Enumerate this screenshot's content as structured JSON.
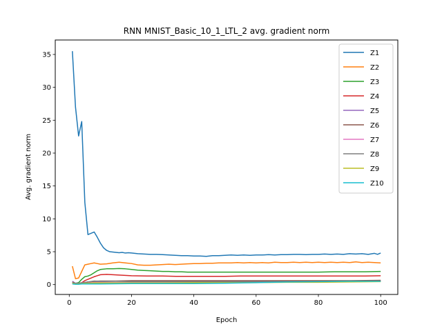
{
  "chart_data": {
    "type": "line",
    "title": "RNN MNIST_Basic_10_1_LTL_2 avg. gradient norm",
    "xlabel": "Epoch",
    "ylabel": "Avg. gradient norm",
    "xlim": [
      -4.5,
      105.5
    ],
    "ylim": [
      -1.5,
      37.2
    ],
    "xticks": [
      0,
      20,
      40,
      60,
      80,
      100
    ],
    "yticks": [
      0,
      5,
      10,
      15,
      20,
      25,
      30,
      35
    ],
    "legend_position": "top-right",
    "grid": false,
    "series": [
      {
        "name": "Z1",
        "color": "#1f77b4",
        "points": [
          [
            1,
            35.5
          ],
          [
            2,
            27
          ],
          [
            3,
            22.6
          ],
          [
            4,
            24.8
          ],
          [
            5,
            12.5
          ],
          [
            6,
            7.6
          ],
          [
            7,
            7.8
          ],
          [
            8,
            8.0
          ],
          [
            9,
            7.2
          ],
          [
            10,
            6.3
          ],
          [
            11,
            5.6
          ],
          [
            12,
            5.2
          ],
          [
            13,
            5.0
          ],
          [
            14,
            4.95
          ],
          [
            15,
            4.9
          ],
          [
            16,
            4.85
          ],
          [
            17,
            4.9
          ],
          [
            18,
            4.8
          ],
          [
            19,
            4.85
          ],
          [
            20,
            4.8
          ],
          [
            22,
            4.7
          ],
          [
            24,
            4.65
          ],
          [
            26,
            4.6
          ],
          [
            28,
            4.6
          ],
          [
            30,
            4.55
          ],
          [
            32,
            4.5
          ],
          [
            34,
            4.45
          ],
          [
            36,
            4.4
          ],
          [
            38,
            4.4
          ],
          [
            40,
            4.35
          ],
          [
            42,
            4.35
          ],
          [
            44,
            4.3
          ],
          [
            46,
            4.4
          ],
          [
            48,
            4.4
          ],
          [
            50,
            4.45
          ],
          [
            52,
            4.5
          ],
          [
            54,
            4.45
          ],
          [
            56,
            4.5
          ],
          [
            58,
            4.45
          ],
          [
            60,
            4.5
          ],
          [
            62,
            4.5
          ],
          [
            64,
            4.55
          ],
          [
            66,
            4.5
          ],
          [
            68,
            4.55
          ],
          [
            70,
            4.55
          ],
          [
            72,
            4.6
          ],
          [
            74,
            4.6
          ],
          [
            76,
            4.55
          ],
          [
            78,
            4.6
          ],
          [
            80,
            4.6
          ],
          [
            82,
            4.65
          ],
          [
            84,
            4.6
          ],
          [
            86,
            4.65
          ],
          [
            88,
            4.6
          ],
          [
            90,
            4.7
          ],
          [
            92,
            4.65
          ],
          [
            94,
            4.7
          ],
          [
            96,
            4.6
          ],
          [
            98,
            4.75
          ],
          [
            99,
            4.6
          ],
          [
            100,
            4.8
          ]
        ]
      },
      {
        "name": "Z2",
        "color": "#ff7f0e",
        "points": [
          [
            1,
            2.8
          ],
          [
            2,
            0.9
          ],
          [
            3,
            1.0
          ],
          [
            4,
            2.0
          ],
          [
            5,
            3.0
          ],
          [
            6,
            3.1
          ],
          [
            7,
            3.2
          ],
          [
            8,
            3.3
          ],
          [
            9,
            3.2
          ],
          [
            10,
            3.1
          ],
          [
            12,
            3.15
          ],
          [
            14,
            3.3
          ],
          [
            16,
            3.4
          ],
          [
            18,
            3.3
          ],
          [
            20,
            3.2
          ],
          [
            22,
            3.0
          ],
          [
            24,
            2.95
          ],
          [
            26,
            2.95
          ],
          [
            28,
            3.0
          ],
          [
            30,
            3.05
          ],
          [
            32,
            3.1
          ],
          [
            34,
            3.05
          ],
          [
            36,
            3.1
          ],
          [
            38,
            3.15
          ],
          [
            40,
            3.2
          ],
          [
            42,
            3.2
          ],
          [
            44,
            3.25
          ],
          [
            46,
            3.25
          ],
          [
            48,
            3.3
          ],
          [
            50,
            3.3
          ],
          [
            52,
            3.3
          ],
          [
            54,
            3.35
          ],
          [
            56,
            3.3
          ],
          [
            58,
            3.35
          ],
          [
            60,
            3.3
          ],
          [
            62,
            3.35
          ],
          [
            64,
            3.3
          ],
          [
            66,
            3.4
          ],
          [
            68,
            3.35
          ],
          [
            70,
            3.35
          ],
          [
            72,
            3.4
          ],
          [
            74,
            3.35
          ],
          [
            76,
            3.4
          ],
          [
            78,
            3.35
          ],
          [
            80,
            3.4
          ],
          [
            82,
            3.35
          ],
          [
            84,
            3.4
          ],
          [
            86,
            3.35
          ],
          [
            88,
            3.4
          ],
          [
            90,
            3.35
          ],
          [
            92,
            3.45
          ],
          [
            94,
            3.35
          ],
          [
            96,
            3.4
          ],
          [
            98,
            3.35
          ],
          [
            100,
            3.3
          ]
        ]
      },
      {
        "name": "Z3",
        "color": "#2ca02c",
        "points": [
          [
            1,
            0.3
          ],
          [
            2,
            0.2
          ],
          [
            3,
            0.3
          ],
          [
            4,
            0.8
          ],
          [
            5,
            1.2
          ],
          [
            6,
            1.3
          ],
          [
            7,
            1.5
          ],
          [
            8,
            1.8
          ],
          [
            9,
            2.1
          ],
          [
            10,
            2.3
          ],
          [
            12,
            2.4
          ],
          [
            14,
            2.4
          ],
          [
            16,
            2.45
          ],
          [
            18,
            2.4
          ],
          [
            20,
            2.3
          ],
          [
            22,
            2.2
          ],
          [
            24,
            2.15
          ],
          [
            26,
            2.1
          ],
          [
            28,
            2.05
          ],
          [
            30,
            2.0
          ],
          [
            32,
            2.0
          ],
          [
            34,
            1.95
          ],
          [
            36,
            1.95
          ],
          [
            38,
            1.9
          ],
          [
            40,
            1.9
          ],
          [
            42,
            1.9
          ],
          [
            44,
            1.9
          ],
          [
            46,
            1.9
          ],
          [
            48,
            1.9
          ],
          [
            50,
            1.9
          ],
          [
            55,
            1.9
          ],
          [
            60,
            1.9
          ],
          [
            65,
            1.9
          ],
          [
            70,
            1.9
          ],
          [
            75,
            1.9
          ],
          [
            80,
            1.9
          ],
          [
            85,
            1.95
          ],
          [
            90,
            1.95
          ],
          [
            95,
            1.95
          ],
          [
            100,
            2.0
          ]
        ]
      },
      {
        "name": "Z4",
        "color": "#d62728",
        "points": [
          [
            1,
            0.2
          ],
          [
            2,
            0.1
          ],
          [
            3,
            0.15
          ],
          [
            4,
            0.3
          ],
          [
            5,
            0.6
          ],
          [
            6,
            0.8
          ],
          [
            7,
            1.0
          ],
          [
            8,
            1.2
          ],
          [
            9,
            1.35
          ],
          [
            10,
            1.5
          ],
          [
            12,
            1.55
          ],
          [
            14,
            1.5
          ],
          [
            16,
            1.45
          ],
          [
            18,
            1.4
          ],
          [
            20,
            1.35
          ],
          [
            25,
            1.3
          ],
          [
            30,
            1.3
          ],
          [
            35,
            1.25
          ],
          [
            40,
            1.25
          ],
          [
            45,
            1.25
          ],
          [
            50,
            1.25
          ],
          [
            55,
            1.3
          ],
          [
            60,
            1.3
          ],
          [
            65,
            1.3
          ],
          [
            70,
            1.3
          ],
          [
            75,
            1.3
          ],
          [
            80,
            1.3
          ],
          [
            85,
            1.3
          ],
          [
            90,
            1.3
          ],
          [
            95,
            1.3
          ],
          [
            100,
            1.35
          ]
        ]
      },
      {
        "name": "Z5",
        "color": "#9467bd",
        "points": [
          [
            1,
            0.5
          ],
          [
            2,
            0.2
          ],
          [
            3,
            0.2
          ],
          [
            4,
            0.3
          ],
          [
            5,
            0.35
          ],
          [
            6,
            0.4
          ],
          [
            8,
            0.45
          ],
          [
            10,
            0.45
          ],
          [
            15,
            0.5
          ],
          [
            20,
            0.5
          ],
          [
            30,
            0.5
          ],
          [
            40,
            0.5
          ],
          [
            50,
            0.5
          ],
          [
            60,
            0.5
          ],
          [
            70,
            0.55
          ],
          [
            80,
            0.55
          ],
          [
            90,
            0.55
          ],
          [
            100,
            0.6
          ]
        ]
      },
      {
        "name": "Z6",
        "color": "#8c564b",
        "points": [
          [
            1,
            0.4
          ],
          [
            2,
            0.15
          ],
          [
            3,
            0.15
          ],
          [
            4,
            0.25
          ],
          [
            5,
            0.3
          ],
          [
            6,
            0.4
          ],
          [
            8,
            0.5
          ],
          [
            10,
            0.55
          ],
          [
            15,
            0.55
          ],
          [
            20,
            0.6
          ],
          [
            30,
            0.6
          ],
          [
            40,
            0.6
          ],
          [
            50,
            0.6
          ],
          [
            60,
            0.6
          ],
          [
            70,
            0.6
          ],
          [
            80,
            0.6
          ],
          [
            90,
            0.6
          ],
          [
            100,
            0.65
          ]
        ]
      },
      {
        "name": "Z7",
        "color": "#e377c2",
        "points": [
          [
            1,
            0.3
          ],
          [
            2,
            0.1
          ],
          [
            3,
            0.1
          ],
          [
            4,
            0.15
          ],
          [
            5,
            0.2
          ],
          [
            6,
            0.25
          ],
          [
            8,
            0.3
          ],
          [
            10,
            0.3
          ],
          [
            20,
            0.3
          ],
          [
            30,
            0.3
          ],
          [
            40,
            0.3
          ],
          [
            50,
            0.35
          ],
          [
            60,
            0.35
          ],
          [
            70,
            0.4
          ],
          [
            80,
            0.4
          ],
          [
            90,
            0.45
          ],
          [
            100,
            0.5
          ]
        ]
      },
      {
        "name": "Z8",
        "color": "#7f7f7f",
        "points": [
          [
            1,
            0.3
          ],
          [
            2,
            0.15
          ],
          [
            3,
            0.2
          ],
          [
            4,
            0.25
          ],
          [
            5,
            0.3
          ],
          [
            6,
            0.4
          ],
          [
            8,
            0.55
          ],
          [
            10,
            0.5
          ],
          [
            15,
            0.5
          ],
          [
            20,
            0.45
          ],
          [
            30,
            0.45
          ],
          [
            40,
            0.45
          ],
          [
            50,
            0.45
          ],
          [
            60,
            0.45
          ],
          [
            70,
            0.45
          ],
          [
            80,
            0.45
          ],
          [
            90,
            0.5
          ],
          [
            100,
            0.5
          ]
        ]
      },
      {
        "name": "Z9",
        "color": "#bcbd22",
        "points": [
          [
            1,
            0.2
          ],
          [
            2,
            0.1
          ],
          [
            3,
            0.1
          ],
          [
            4,
            0.15
          ],
          [
            5,
            0.2
          ],
          [
            6,
            0.2
          ],
          [
            8,
            0.25
          ],
          [
            10,
            0.25
          ],
          [
            20,
            0.25
          ],
          [
            30,
            0.25
          ],
          [
            40,
            0.3
          ],
          [
            50,
            0.3
          ],
          [
            60,
            0.3
          ],
          [
            70,
            0.35
          ],
          [
            80,
            0.35
          ],
          [
            90,
            0.4
          ],
          [
            100,
            0.45
          ]
        ]
      },
      {
        "name": "Z10",
        "color": "#17becf",
        "points": [
          [
            1,
            0.1
          ],
          [
            2,
            0.05
          ],
          [
            3,
            0.05
          ],
          [
            4,
            0.1
          ],
          [
            5,
            0.1
          ],
          [
            6,
            0.1
          ],
          [
            8,
            0.1
          ],
          [
            10,
            0.1
          ],
          [
            20,
            0.15
          ],
          [
            30,
            0.15
          ],
          [
            40,
            0.15
          ],
          [
            50,
            0.2
          ],
          [
            60,
            0.3
          ],
          [
            70,
            0.4
          ],
          [
            80,
            0.45
          ],
          [
            90,
            0.5
          ],
          [
            100,
            0.5
          ]
        ]
      }
    ]
  }
}
